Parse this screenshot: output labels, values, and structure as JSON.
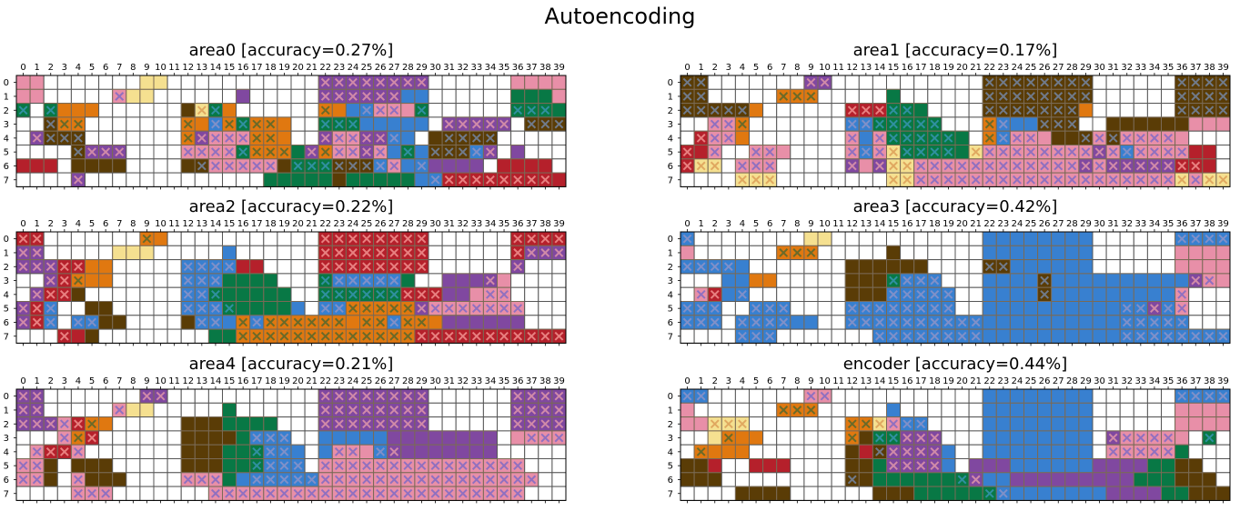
{
  "title": "Autoencoding",
  "palette": {
    "r": "#b5202b",
    "p": "#e88fa8",
    "y": "#f5e090",
    "o": "#e07810",
    "b": "#3880d0",
    "g": "#087845",
    "d": "#5a3c06",
    "u": "#8048a0",
    "e": "#f8a890",
    "w": "#ffffff"
  },
  "chart_data": [
    {
      "type": "heatmap",
      "title": "area0 [accuracy=0.27%]",
      "x_ticks": [
        "0",
        "1",
        "2",
        "3",
        "4",
        "5",
        "6",
        "7",
        "8",
        "9",
        "10",
        "11",
        "12",
        "13",
        "14",
        "15",
        "16",
        "17",
        "18",
        "19",
        "20",
        "21",
        "22",
        "23",
        "24",
        "25",
        "26",
        "27",
        "28",
        "29",
        "30",
        "31",
        "32",
        "33",
        "34",
        "35",
        "36",
        "37",
        "38",
        "39"
      ],
      "y_ticks": [
        "0",
        "1",
        "2",
        "3",
        "4",
        "5",
        "6",
        "7"
      ],
      "grid": [
        "ppwwwwwwwyywwwwwwwwwwwuuuuuuuuwwwwwwpppp",
        "ppwwwwwpyywwwwwwuwwwwwuuuuuubbwwwwwwgggp",
        "gwgooowwwwwwdygowwwwwwoobbpppgwwwwwwgggg",
        "wwdoowwwwwwwoobogooowwgggbbbbbwuuuuuwddd",
        "wudddwwwwwwwoupppooowwuppuubbwdddddwwwww",
        "wwwwduuuwwwwppppgoooguoppupbgbdddbuwuwww",
        "rrrwddddwwwwddpppppdgggdddbpbbuuuuwrrrrw",
        "wwwwuwwwwwwwwwwwwwgggggdgggggbbrrrrrrrrr"
      ],
      "marks": [
        "0000000000000000000000111111110000000000",
        "0000000100000000000000111111000000000000",
        "1010000000000110000000100111010000001110",
        "0011100000001011111000111000000111110111",
        "0111100000001111111000111111000111110000",
        "0000111100001111111101111110101111100000",
        "0000000000000111111011111111010000000000",
        "0000100000000000000000000000001111111110"
      ]
    },
    {
      "type": "heatmap",
      "title": "area1 [accuracy=0.17%]",
      "x_ticks": [
        "0",
        "1",
        "2",
        "3",
        "4",
        "5",
        "6",
        "7",
        "8",
        "9",
        "10",
        "11",
        "12",
        "13",
        "14",
        "15",
        "16",
        "17",
        "18",
        "19",
        "20",
        "21",
        "22",
        "23",
        "24",
        "25",
        "26",
        "27",
        "28",
        "29",
        "30",
        "31",
        "32",
        "33",
        "34",
        "35",
        "36",
        "37",
        "38",
        "39"
      ],
      "y_ticks": [
        "0",
        "1",
        "2",
        "3",
        "4",
        "5",
        "6",
        "7"
      ],
      "grid": [
        "ddwwwwwwwuuwwwwwwwwwwwddddddddwwwwwwdddd",
        "ddwwwwwooowwwwwgwwwwwwddddddddwwwwwwdddd",
        "dddddowwwwwwrrrgggwwwwdddddddowwwwwwdddd",
        "wwppowwwwwwwbbgggggwwwobbbdddwwddddddppp",
        "wrppowwwwwwwpbpggggggwobpppdddpdpppppwww",
        "rrpwwpppwwwwpbpygggggyppppppppupbpppprrw",
        "ryywpppwwwwwupuyyppppppppppppupuuuuurrrw",
        "wwwwyyywwwwwwwwyypppppppppppppppppppypyy"
      ],
      "marks": [
        "1100000001100000000000111111110000001111",
        "1100000111000000000000111111110000001111",
        "1111100000001111100000111111100000001111",
        "0011100000001111111000110011100000000000",
        "0111000000001011111100111100011111110000",
        "1010111000001111111101111111111111111000",
        "1110111000001011111111111111111111111101",
        "0000111000000001111111111111111111111111"
      ]
    },
    {
      "type": "heatmap",
      "title": "area2 [accuracy=0.22%]",
      "x_ticks": [
        "0",
        "1",
        "2",
        "3",
        "4",
        "5",
        "6",
        "7",
        "8",
        "9",
        "10",
        "11",
        "12",
        "13",
        "14",
        "15",
        "16",
        "17",
        "18",
        "19",
        "20",
        "21",
        "22",
        "23",
        "24",
        "25",
        "26",
        "27",
        "28",
        "29",
        "30",
        "31",
        "32",
        "33",
        "34",
        "35",
        "36",
        "37",
        "38",
        "39"
      ],
      "y_ticks": [
        "0",
        "1",
        "2",
        "3",
        "4",
        "5",
        "6",
        "7"
      ],
      "grid": [
        "rrwwwwwwwoowwwwwwwwwwwrrrrrrrrwwwwwwrrrr",
        "uuwwwwwyyywwwwwbwwwwwwrrrrrrrrwwwwwwruuu",
        "uuurroowwwwwbbbbrrwwwwrrrrrrrrwwwwwwuwww",
        "wwurooowwwwwbbbggggwwwgbbbbbgwwuuuupwwww",
        "wurrdwwwwwwwbbggggggwwggggggrrruupppwwww",
        "urbwwddwwwwwbbbgggggbwbboooooupppppppwww",
        "urbwbbddwwwwdbbbobooooooooobooouuuuuuwww",
        "wwwrrdwwwwwwwwggooooooooooooorrrrrrrrrrr"
      ],
      "marks": [
        "1100000001000000000000111111110000001111",
        "1100000000000000000000111111110000001111",
        "1111100000001111000000111111110000001000",
        "0011100000001110000000111111010000100000",
        "0111000000001110000000111111111000110000",
        "1110000000001111000000111111111111111000",
        "1110110000000110111111110111110000000000",
        "0001000000000000111111111111111111111111"
      ]
    },
    {
      "type": "heatmap",
      "title": "area3 [accuracy=0.42%]",
      "x_ticks": [
        "0",
        "1",
        "2",
        "3",
        "4",
        "5",
        "6",
        "7",
        "8",
        "9",
        "10",
        "11",
        "12",
        "13",
        "14",
        "15",
        "16",
        "17",
        "18",
        "19",
        "20",
        "21",
        "22",
        "23",
        "24",
        "25",
        "26",
        "27",
        "28",
        "29",
        "30",
        "31",
        "32",
        "33",
        "34",
        "35",
        "36",
        "37",
        "38",
        "39"
      ],
      "y_ticks": [
        "0",
        "1",
        "2",
        "3",
        "4",
        "5",
        "6",
        "7"
      ],
      "grid": [
        "bwwwwwwwwyywwwwwwwwwwwbbbbbbbbwwwwwwbbbb",
        "pwwwwwwooowwwwwdwwwwwwbbbbbbbbwwwwwwpppp",
        "bbbbbwwwwwwwddddddwwwwddbbbbbbwwwwwwpppp",
        "wwwbboowwwwwdddgbbbwwwbbbbdbbbbbbbbbbupp",
        "wprbbwwwwwwwdddbbbbbwwbbbbdbbbbbbbbbpwww",
        "bbbwwbbbwwwwbbbbbbbbwwbbbbbbbbbbbbubpwww",
        "bbbwbbbbbbwwbbbbbbbbbbbbbbbbbbbbbbbbbwww",
        "wwwwbbbwwwwwwwbbbbbbbbbbbbbbbbbbbbbbbbbb"
      ],
      "marks": [
        "1000000000000000000000000000000000001111",
        "0000000111000000000000000000000000000000",
        "1111000000000000000000110000000000000000",
        "0000000000000001111000000010000000000110",
        "0110100000000001111100000010000000001000",
        "1110011100001111111100000000000011111100",
        "1110111100001111111111000000000011111100",
        "0000111000000011111111000000000011111111"
      ]
    },
    {
      "type": "heatmap",
      "title": "area4 [accuracy=0.21%]",
      "x_ticks": [
        "0",
        "1",
        "2",
        "3",
        "4",
        "5",
        "6",
        "7",
        "8",
        "9",
        "10",
        "11",
        "12",
        "13",
        "14",
        "15",
        "16",
        "17",
        "18",
        "19",
        "20",
        "21",
        "22",
        "23",
        "24",
        "25",
        "26",
        "27",
        "28",
        "29",
        "30",
        "31",
        "32",
        "33",
        "34",
        "35",
        "36",
        "37",
        "38",
        "39"
      ],
      "y_ticks": [
        "0",
        "1",
        "2",
        "3",
        "4",
        "5",
        "6",
        "7"
      ],
      "grid": [
        "uuwwwwwwwuuwwwwwwwwwwwuuuuuuuuwwwwwwuuuu",
        "uuwwwwwpyywwwwwgwwwwwwuuuuuuuuwwwwwwuuuu",
        "uuuproowwwwwdddggggwwwuuuuuuuuwwwwwwuuuu",
        "wwwporwwwwwwddddgbbbwwbbbbbuuuuuuuuwpppp",
        "wprrpwwwwwwwdddgggbbbwbpppbuuuuuuuuwwwww",
        "ppdwdddwwwwwdddgggbbbwpppppppppppppppwww",
        "ppdwpdddwwwwpppgbbbbbbppppppppppppppppww",
        "wwwwpppwwwwwwwpppppppppppppppppppppppwww"
      ],
      "marks": [
        "1100000001100000000000111111110000001111",
        "1100000100000000000000111111110000001111",
        "1111110000000000000000111111110000001111",
        "0001110000000000011100000000000000000111",
        "0111100000000000011100011011000000000000",
        "1100000000000000011111111111111111111100",
        "1100100000001110011111111111111111111100",
        "0000111000000011111111111111111111111100"
      ]
    },
    {
      "type": "heatmap",
      "title": "encoder [accuracy=0.44%]",
      "x_ticks": [
        "0",
        "1",
        "2",
        "3",
        "4",
        "5",
        "6",
        "7",
        "8",
        "9",
        "10",
        "11",
        "12",
        "13",
        "14",
        "15",
        "16",
        "17",
        "18",
        "19",
        "20",
        "21",
        "22",
        "23",
        "24",
        "25",
        "26",
        "27",
        "28",
        "29",
        "30",
        "31",
        "32",
        "33",
        "34",
        "35",
        "36",
        "37",
        "38",
        "39"
      ],
      "y_ticks": [
        "0",
        "1",
        "2",
        "3",
        "4",
        "5",
        "6",
        "7"
      ],
      "grid": [
        "bbwwwwwwwppwwwwwwwwwwwbbbbbbbbwwwwwwbbbb",
        "pwwwwwwooowwwwwbwwwwwwbbbbbbbbwwwwwwpppp",
        "ppyyywwwwwwwooypbbwwwwbbbbbbbbwwwwwwpppp",
        "wwyooowwwwwwodgguuuwwwbbbbbbbbwupppppwgw",
        "woooowwwwwwwdrduuuubwwbbbbbbbbwpppppgwww",
        "ddrwwrrrwwwwddguuuubwuuubbbbbbuuuuggddww",
        "dddwwwwwwwwwddgggggggubbuuuuuuuuugggdddw",
        "wwwwddddwwwwwwdddggggggbbbbbbbbuuuuggddd"
      ],
      "marks": [
        "1100000001100000000000000000000000001111",
        "0000000111000000000000000000000000000000",
        "0011100000001111110000000000000000000000",
        "0001000000001011111000000000000111110010",
        "0100000000000011111000000000000111110000",
        "0000000000000001111000000000000000000000",
        "0000000000001000000011000000000000000000",
        "0000000000000000000000110000000000000000"
      ]
    }
  ]
}
